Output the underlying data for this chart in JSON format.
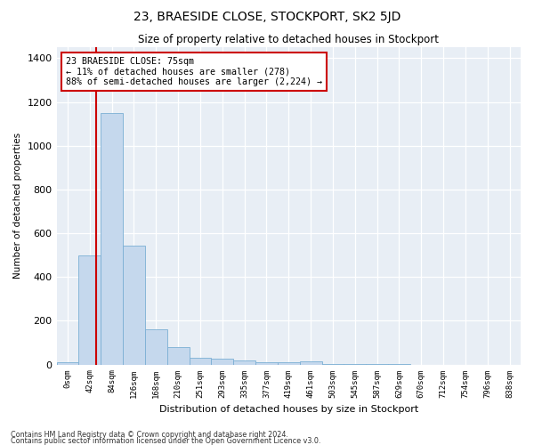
{
  "title": "23, BRAESIDE CLOSE, STOCKPORT, SK2 5JD",
  "subtitle": "Size of property relative to detached houses in Stockport",
  "xlabel": "Distribution of detached houses by size in Stockport",
  "ylabel": "Number of detached properties",
  "bin_labels": [
    "0sqm",
    "42sqm",
    "84sqm",
    "126sqm",
    "168sqm",
    "210sqm",
    "251sqm",
    "293sqm",
    "335sqm",
    "377sqm",
    "419sqm",
    "461sqm",
    "503sqm",
    "545sqm",
    "587sqm",
    "629sqm",
    "670sqm",
    "712sqm",
    "754sqm",
    "796sqm",
    "838sqm"
  ],
  "bar_values": [
    10,
    500,
    1150,
    545,
    160,
    80,
    30,
    28,
    20,
    10,
    10,
    15,
    3,
    2,
    1,
    1,
    0,
    0,
    0,
    0,
    0
  ],
  "bar_color": "#c5d8ed",
  "bar_edge_color": "#7bafd4",
  "vline_color": "#cc0000",
  "annotation_line1": "23 BRAESIDE CLOSE: 75sqm",
  "annotation_line2": "← 11% of detached houses are smaller (278)",
  "annotation_line3": "88% of semi-detached houses are larger (2,224) →",
  "annotation_box_facecolor": "#ffffff",
  "annotation_box_edgecolor": "#cc0000",
  "ylim": [
    0,
    1450
  ],
  "yticks": [
    0,
    200,
    400,
    600,
    800,
    1000,
    1200,
    1400
  ],
  "bg_color": "#e8eef5",
  "fig_bg_color": "#ffffff",
  "footnote1": "Contains HM Land Registry data © Crown copyright and database right 2024.",
  "footnote2": "Contains public sector information licensed under the Open Government Licence v3.0."
}
